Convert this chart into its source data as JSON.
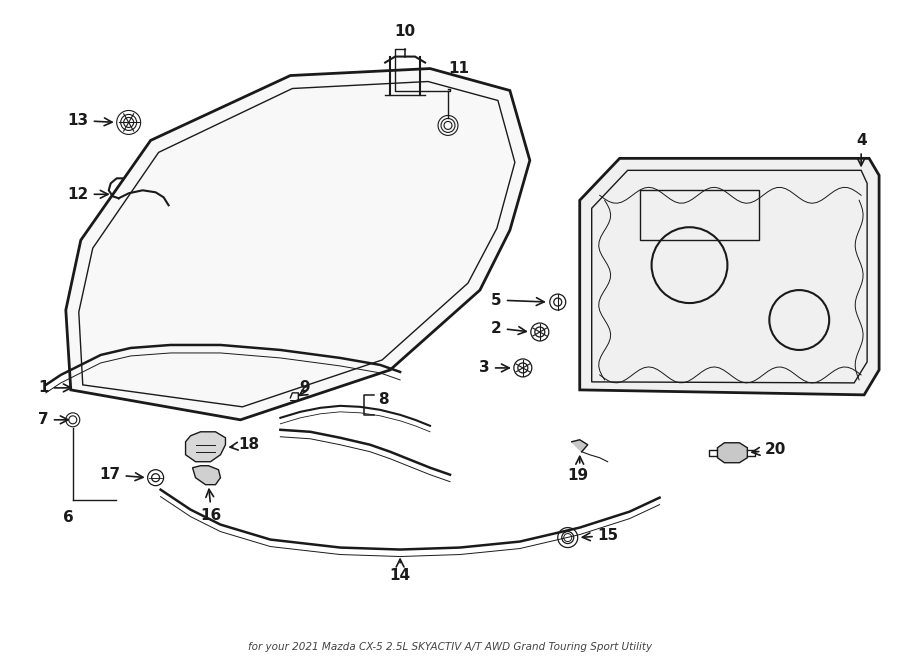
{
  "bg_color": "#ffffff",
  "line_color": "#1a1a1a",
  "subtitle": "for your 2021 Mazda CX-5 2.5L SKYACTIV A/T AWD Grand Touring Sport Utility",
  "fig_width": 9.0,
  "fig_height": 6.62,
  "dpi": 100
}
